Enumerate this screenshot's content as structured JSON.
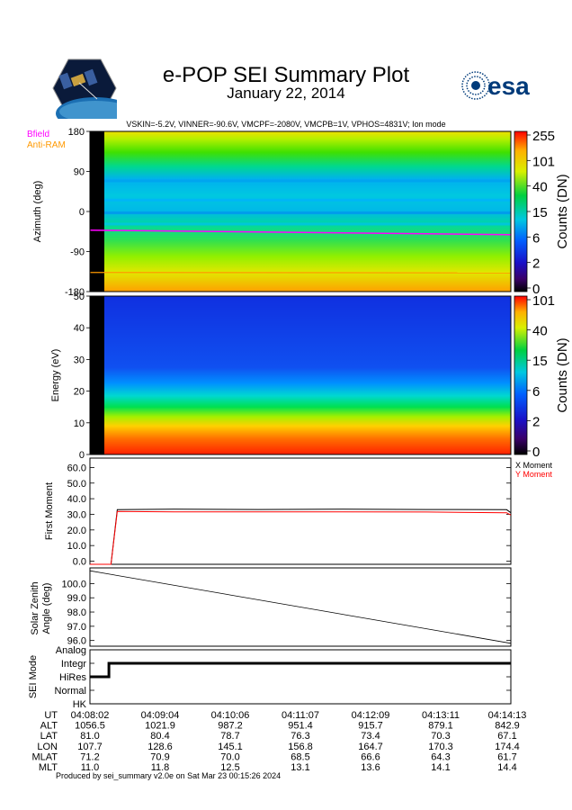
{
  "header": {
    "title": "e-POP SEI Summary Plot",
    "date": "January 22, 2014",
    "params": "VSKIN=-5.2V, VINNER=-90.6V, VMCPF=-2080V, VMCPB=1V, VPHOS=4831V; Ion mode",
    "logo_left_icon": "epop-satellite-logo",
    "logo_right_text": "esa",
    "logo_right_icon": "esa-logo"
  },
  "footer": {
    "produced": "Produced by sei_summary v2.0e on Sat Mar 23 00:15:26 2024"
  },
  "colors": {
    "bfield": "#ff00ff",
    "antiram": "#ff9900",
    "x_moment": "#000000",
    "y_moment": "#ff0000",
    "esa_blue": "#003b7a"
  },
  "chart_data": [
    {
      "type": "heatmap",
      "name": "azimuth",
      "ylabel": "Azimuth (deg)",
      "ylim": [
        -180,
        180
      ],
      "yticks": [
        180,
        90,
        0,
        -90,
        -180
      ],
      "colorbar_label": "Counts (DN)",
      "colorbar_ticks": [
        "255",
        "101",
        "40",
        "15",
        "6",
        "2",
        "0"
      ],
      "legend": [
        "Bfield",
        "Anti-RAM"
      ],
      "bfield_deg": [
        -42,
        -52
      ],
      "antiram_deg": [
        -137,
        -138
      ],
      "fill_columns": 2.5
    },
    {
      "type": "heatmap",
      "name": "energy",
      "ylabel": "Energy (eV)",
      "ylim": [
        0,
        50
      ],
      "yticks": [
        50,
        40,
        30,
        20,
        10,
        0
      ],
      "colorbar_label": "Counts (DN)",
      "colorbar_ticks": [
        "101",
        "40",
        "15",
        "6",
        "2",
        "0"
      ],
      "energy_band_top_ev": [
        20,
        28,
        36
      ]
    },
    {
      "type": "line",
      "name": "first-moment",
      "ylabel": "First Moment",
      "ylim": [
        -2,
        66
      ],
      "yticks": [
        "60.0",
        "50.0",
        "40.0",
        "30.0",
        "20.0",
        "10.0",
        "0.0"
      ],
      "legend": [
        "X Moment",
        "Y Moment"
      ],
      "series": [
        {
          "name": "X Moment",
          "x": [
            0,
            0.05,
            0.065,
            0.2,
            0.4,
            0.6,
            0.8,
            0.99,
            1.0
          ],
          "values": [
            -2,
            -2,
            33.0,
            33.3,
            33.1,
            33.3,
            33.1,
            33.0,
            31.0
          ]
        },
        {
          "name": "Y Moment",
          "x": [
            0,
            0.05,
            0.065,
            0.2,
            0.4,
            0.6,
            0.8,
            0.99,
            1.0
          ],
          "values": [
            -2,
            -2,
            31.8,
            31.6,
            31.6,
            31.6,
            31.5,
            31.0,
            29.5
          ]
        }
      ]
    },
    {
      "type": "line",
      "name": "solar-zenith-angle",
      "ylabel": "Solar Zenith Angle (deg)",
      "ylabel_lines": [
        "Solar Zenith",
        "Angle (deg)"
      ],
      "ylim": [
        95.6,
        101.1
      ],
      "yticks": [
        "100.0",
        "99.0",
        "98.0",
        "97.0",
        "96.0"
      ],
      "series": [
        {
          "name": "SZA",
          "x": [
            0,
            1
          ],
          "values": [
            100.9,
            95.8
          ]
        }
      ]
    },
    {
      "type": "line",
      "name": "sei-mode",
      "ylabel": "SEI Mode",
      "categories": [
        "Analog",
        "Integr",
        "HiRes",
        "Normal",
        "HK"
      ],
      "series": [
        {
          "name": "Mode",
          "x": [
            0,
            0.035,
            0.035,
            0.045,
            0.045,
            1.0
          ],
          "values": [
            1,
            1,
            1,
            1,
            2,
            2
          ]
        }
      ]
    },
    {
      "type": "table",
      "name": "ephemeris",
      "rows": [
        {
          "label": "UT",
          "values": [
            "04:08:02",
            "04:09:04",
            "04:10:06",
            "04:11:07",
            "04:12:09",
            "04:13:11",
            "04:14:13"
          ]
        },
        {
          "label": "ALT",
          "values": [
            "1056.5",
            "1021.9",
            "987.2",
            "951.4",
            "915.7",
            "879.1",
            "842.9"
          ]
        },
        {
          "label": "LAT",
          "values": [
            "81.0",
            "80.4",
            "78.7",
            "76.3",
            "73.4",
            "70.3",
            "67.1"
          ]
        },
        {
          "label": "LON",
          "values": [
            "107.7",
            "128.6",
            "145.1",
            "156.8",
            "164.7",
            "170.3",
            "174.4"
          ]
        },
        {
          "label": "MLAT",
          "values": [
            "71.2",
            "70.9",
            "70.0",
            "68.5",
            "66.6",
            "64.3",
            "61.7"
          ]
        },
        {
          "label": "MLT",
          "values": [
            "11.0",
            "11.8",
            "12.5",
            "13.1",
            "13.6",
            "14.1",
            "14.4"
          ]
        }
      ]
    }
  ]
}
